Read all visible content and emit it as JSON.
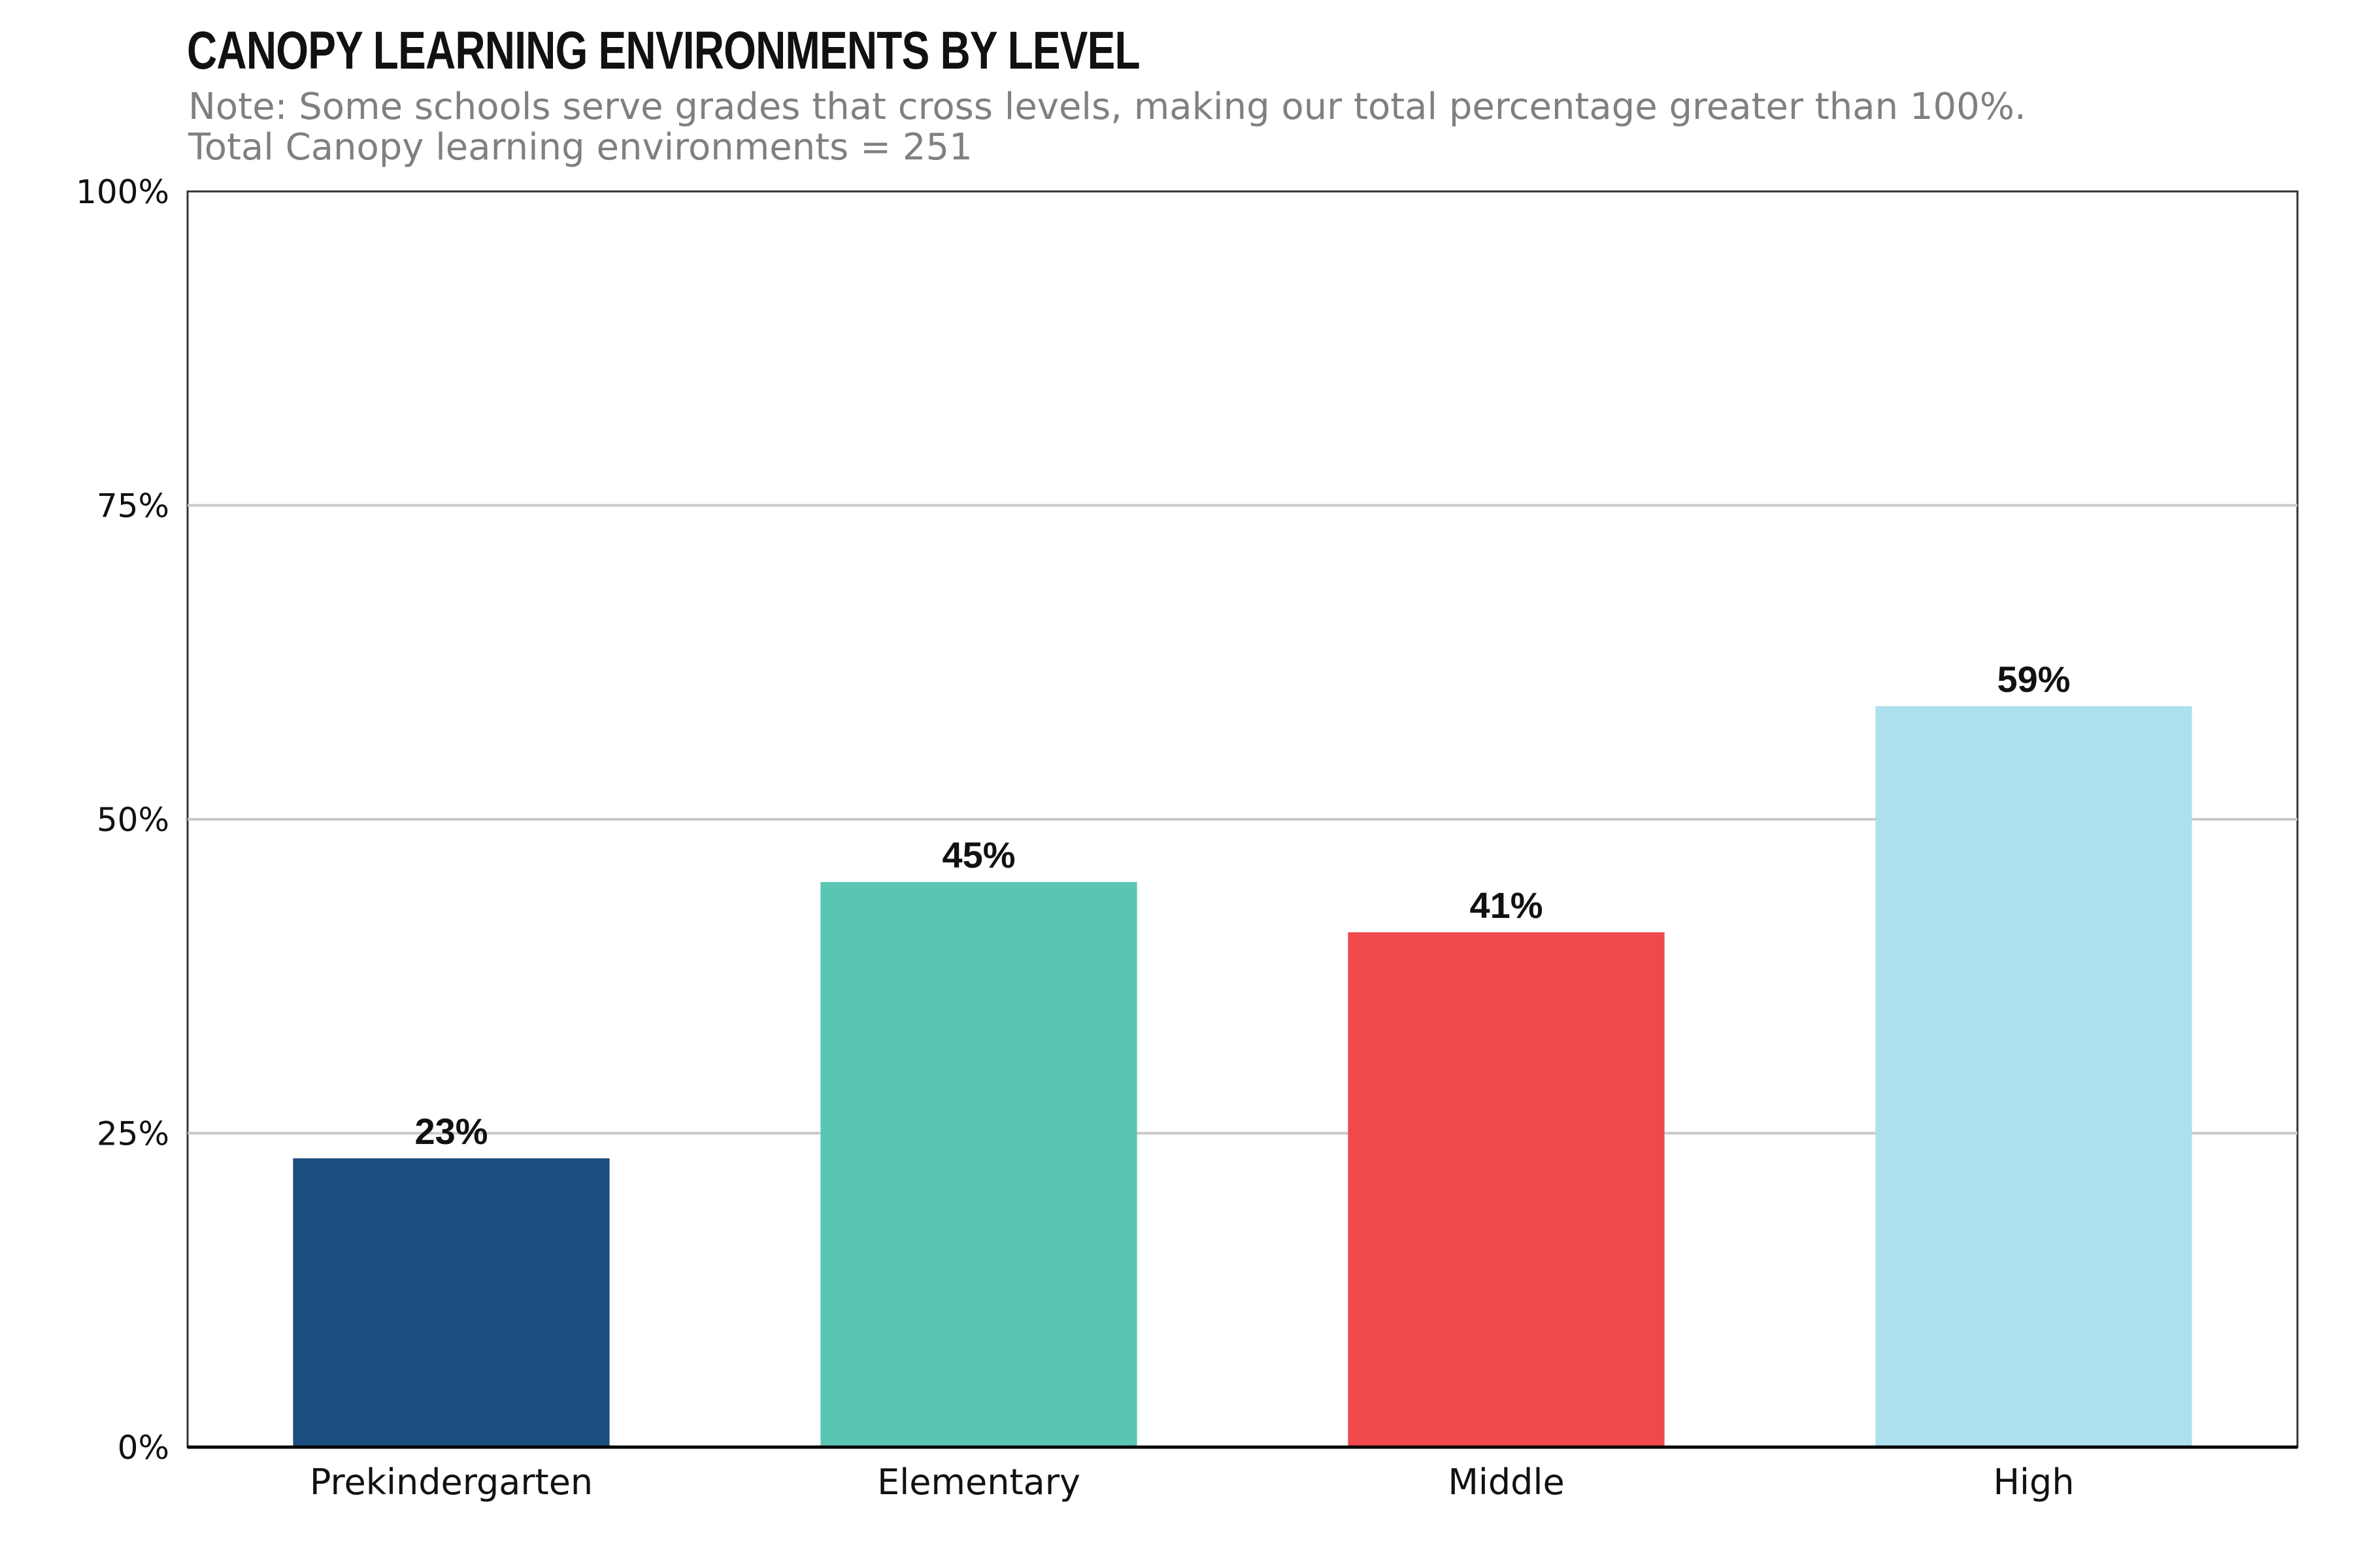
{
  "chart_data": {
    "type": "bar",
    "title": "CANOPY LEARNING ENVIRONMENTS BY LEVEL",
    "subtitle_lines": [
      "Note: Some schools serve grades that cross levels, making our total percentage greater than 100%.",
      "Total Canopy learning environments = 251"
    ],
    "categories": [
      "Prekindergarten",
      "Elementary",
      "Middle",
      "High"
    ],
    "values": [
      23,
      45,
      41,
      59
    ],
    "data_labels": [
      "23%",
      "45%",
      "41%",
      "59%"
    ],
    "colors": [
      "#1c4d80",
      "#5bc5b4",
      "#ef484d",
      "#abe0ec"
    ],
    "ylim": [
      0,
      100
    ],
    "yticks": [
      0,
      25,
      50,
      75,
      100
    ],
    "ytick_labels": [
      "0%",
      "25%",
      "50%",
      "75%",
      "100%"
    ],
    "xlabel": "",
    "ylabel": "",
    "grid": true,
    "legend": "none"
  }
}
